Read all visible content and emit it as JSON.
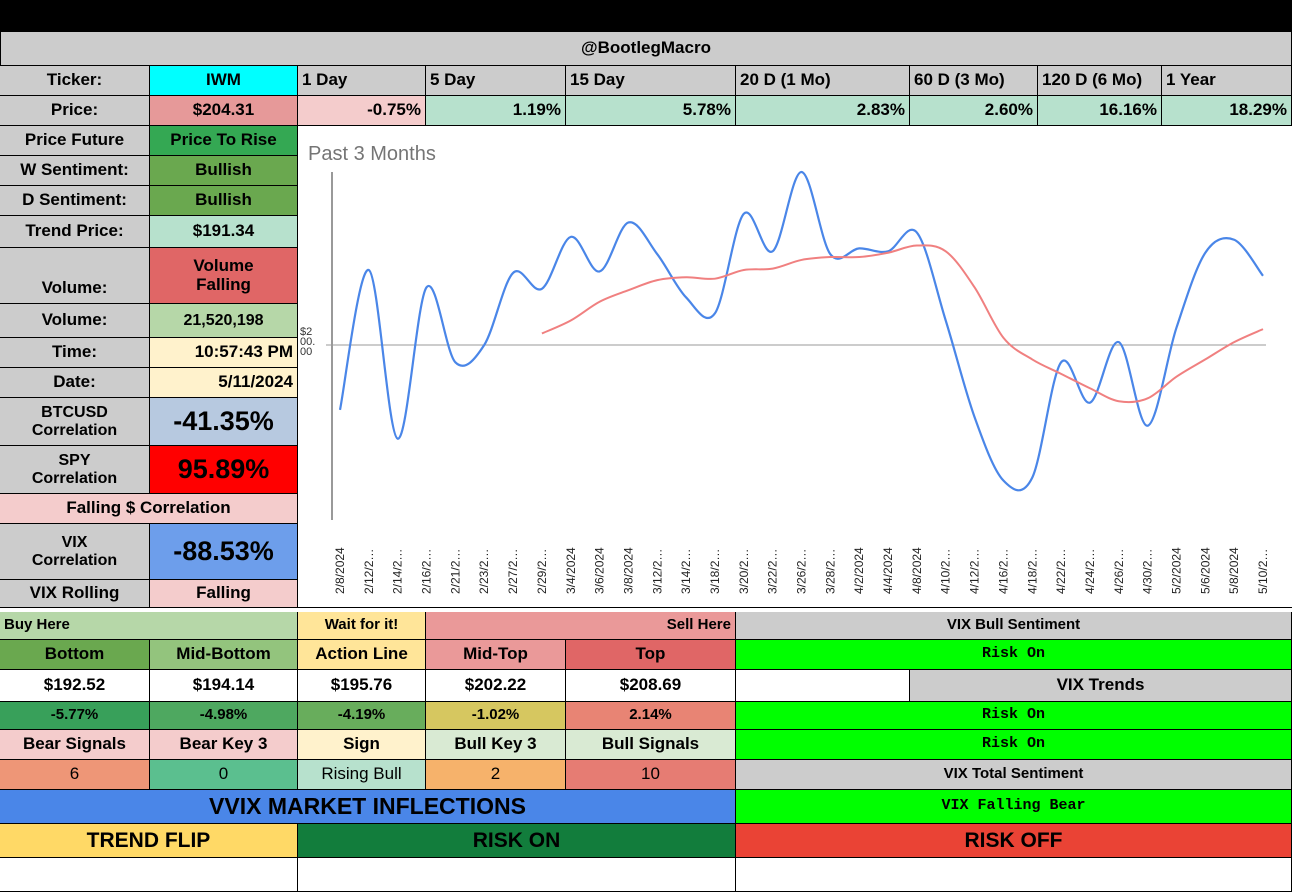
{
  "header": {
    "title": "@BootlegMacro"
  },
  "row_ticker": {
    "label": "Ticker:",
    "value": "IWM",
    "periods": [
      "1 Day",
      "5 Day",
      "15 Day",
      "20 D (1 Mo)",
      "60 D (3 Mo)",
      "120 D (6 Mo)",
      "1 Year"
    ]
  },
  "row_price": {
    "label": "Price:",
    "value": "$204.31",
    "changes": [
      "-0.75%",
      "1.19%",
      "5.78%",
      "2.83%",
      "2.60%",
      "16.16%",
      "18.29%"
    ]
  },
  "stats": {
    "price_future": {
      "label": "Price Future",
      "value": "Price To Rise"
    },
    "w_sentiment": {
      "label": "W Sentiment:",
      "value": "Bullish"
    },
    "d_sentiment": {
      "label": "D Sentiment:",
      "value": "Bullish"
    },
    "trend_price": {
      "label": "Trend Price:",
      "value": "$191.34"
    },
    "volume_trend": {
      "label": "Volume:",
      "value": "Volume Falling"
    },
    "volume": {
      "label": "Volume:",
      "value": "21,520,198"
    },
    "time": {
      "label": "Time:",
      "value": "10:57:43 PM"
    },
    "date": {
      "label": "Date:",
      "value": "5/11/2024"
    },
    "btc_corr": {
      "label": "BTCUSD Correlation",
      "value": "-41.35%"
    },
    "spy_corr": {
      "label": "SPY Correlation",
      "value": "95.89%"
    },
    "falling_corr": {
      "label": "Falling $ Correlation"
    },
    "vix_corr": {
      "label": "VIX Correlation",
      "value": "-88.53%"
    },
    "vix_rolling": {
      "label": "VIX Rolling",
      "value": "Falling"
    }
  },
  "levels": {
    "buy_here": "Buy Here",
    "wait": "Wait for it!",
    "sell_here": "Sell Here",
    "headers": [
      "Bottom",
      "Mid-Bottom",
      "Action Line",
      "Mid-Top",
      "Top"
    ],
    "prices": [
      "$192.52",
      "$194.14",
      "$195.76",
      "$202.22",
      "$208.69"
    ],
    "pcts": [
      "-5.77%",
      "-4.98%",
      "-4.19%",
      "-1.02%",
      "2.14%"
    ]
  },
  "signals": {
    "headers": [
      "Bear Signals",
      "Bear Key 3",
      "Sign",
      "Bull Key 3",
      "Bull Signals"
    ],
    "values": [
      "6",
      "0",
      "Rising Bull",
      "2",
      "10"
    ]
  },
  "vix_panel": {
    "bull_sentiment_label": "VIX Bull Sentiment",
    "bull_sentiment_value": "Risk On",
    "trends_label": "VIX Trends",
    "trends_values": [
      "Risk On",
      "Risk On"
    ],
    "total_label": "VIX Total Sentiment",
    "total_value": "VIX Falling Bear"
  },
  "bottom": {
    "vvix": "VVIX MARKET INFLECTIONS",
    "trend_flip": "TREND FLIP",
    "risk_on": "RISK ON",
    "risk_off": "RISK OFF"
  },
  "colors": {
    "price_line": "#4a86e8",
    "trend_line": "#f08080"
  },
  "chart_data": {
    "type": "line",
    "title": "Past 3 Months",
    "reference_label": "$200.00",
    "reference_value": 200,
    "ylim": [
      188,
      212
    ],
    "x": [
      "2/8/2024",
      "2/12/2…",
      "2/14/2…",
      "2/16/2…",
      "2/21/2…",
      "2/23/2…",
      "2/27/2…",
      "2/29/2…",
      "3/4/2024",
      "3/6/2024",
      "3/8/2024",
      "3/12/2…",
      "3/14/2…",
      "3/18/2…",
      "3/20/2…",
      "3/22/2…",
      "3/26/2…",
      "3/28/2…",
      "4/2/2024",
      "4/4/2024",
      "4/8/2024",
      "4/10/2…",
      "4/12/2…",
      "4/16/2…",
      "4/18/2…",
      "4/22/2…",
      "4/24/2…",
      "4/26/2…",
      "4/30/2…",
      "5/2/2024",
      "5/6/2024",
      "5/8/2024",
      "5/10/2…"
    ],
    "series": [
      {
        "name": "Price",
        "values": [
          195.5,
          205.2,
          193.5,
          204.0,
          198.8,
          200.0,
          205.0,
          203.9,
          207.5,
          205.1,
          208.5,
          206.3,
          203.3,
          202.2,
          209.1,
          206.5,
          212.0,
          206.3,
          206.7,
          206.5,
          207.8,
          201.7,
          195.0,
          190.6,
          190.8,
          198.8,
          196.0,
          200.2,
          194.4,
          201.2,
          206.4,
          207.3,
          204.8
        ]
      },
      {
        "name": "Trend",
        "values": [
          null,
          null,
          null,
          null,
          null,
          null,
          null,
          200.8,
          201.7,
          203.0,
          203.8,
          204.5,
          204.7,
          204.6,
          205.2,
          205.3,
          205.9,
          206.1,
          206.1,
          206.4,
          206.9,
          206.5,
          204.0,
          200.5,
          199.0,
          198.0,
          197.0,
          196.1,
          196.3,
          197.8,
          199.0,
          200.2,
          201.1
        ]
      }
    ]
  }
}
